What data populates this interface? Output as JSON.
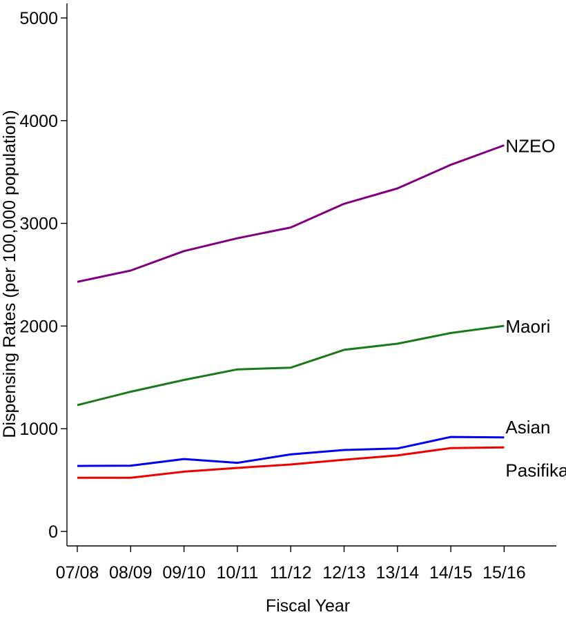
{
  "chart_data": {
    "type": "line",
    "title": "",
    "xlabel": "Fiscal Year",
    "ylabel": "Dispensing Rates (per 100,000 population)",
    "categories": [
      "07/08",
      "08/09",
      "09/10",
      "10/11",
      "11/12",
      "12/13",
      "13/14",
      "14/15",
      "15/16"
    ],
    "ylim": [
      0,
      5000
    ],
    "yticks": [
      0,
      1000,
      2000,
      3000,
      4000,
      5000
    ],
    "grid": false,
    "legend": "direct labels at line ends",
    "series": [
      {
        "name": "NZEO",
        "color": "#800080",
        "values": [
          2430,
          2540,
          2730,
          2855,
          2960,
          3190,
          3340,
          3570,
          3760
        ]
      },
      {
        "name": "Maori",
        "color": "#1a7a1a",
        "values": [
          1230,
          1360,
          1475,
          1578,
          1595,
          1768,
          1828,
          1932,
          2002
        ]
      },
      {
        "name": "Asian",
        "color": "#0000ee",
        "values": [
          638,
          640,
          705,
          668,
          750,
          793,
          808,
          920,
          915
        ]
      },
      {
        "name": "Pasifika",
        "color": "#ee0000",
        "values": [
          522,
          522,
          582,
          618,
          652,
          698,
          740,
          812,
          818
        ]
      }
    ]
  }
}
